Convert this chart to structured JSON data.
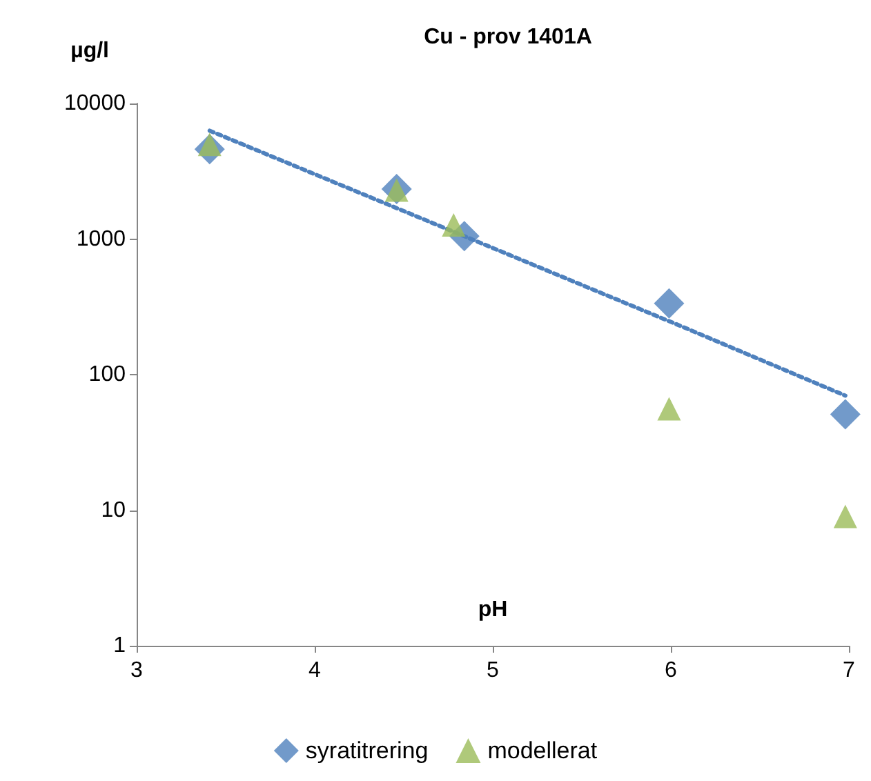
{
  "chart_data": {
    "type": "scatter",
    "title": "Cu - prov 1401A",
    "xlabel": "pH",
    "ylabel": "µg/l",
    "series": [
      {
        "name": "syratitrering",
        "color": "#4f81bd",
        "marker": "diamond",
        "x": [
          3.41,
          4.46,
          4.84,
          5.99,
          6.98
        ],
        "values": [
          4600,
          2340,
          1050,
          335,
          51
        ]
      },
      {
        "name": "modellerat",
        "color": "#9bbb59",
        "marker": "triangle",
        "x": [
          3.41,
          4.46,
          4.78,
          5.99,
          6.98
        ],
        "values": [
          5000,
          2300,
          1270,
          56,
          9
        ]
      },
      {
        "type": "line",
        "color": "#4f81bd",
        "marker": "none",
        "line_style": "dotted",
        "x": [
          3.41,
          4.48,
          6.05,
          6.98
        ],
        "values": [
          6300,
          1650,
          230,
          70
        ]
      }
    ],
    "xlim": [
      3,
      7
    ],
    "xticks": [
      3,
      4,
      5,
      6,
      7
    ],
    "ylim": [
      1,
      10000
    ],
    "yticks": [
      1,
      10,
      100,
      1000,
      10000
    ],
    "log": "y",
    "grid": false,
    "legend": "bottom"
  }
}
